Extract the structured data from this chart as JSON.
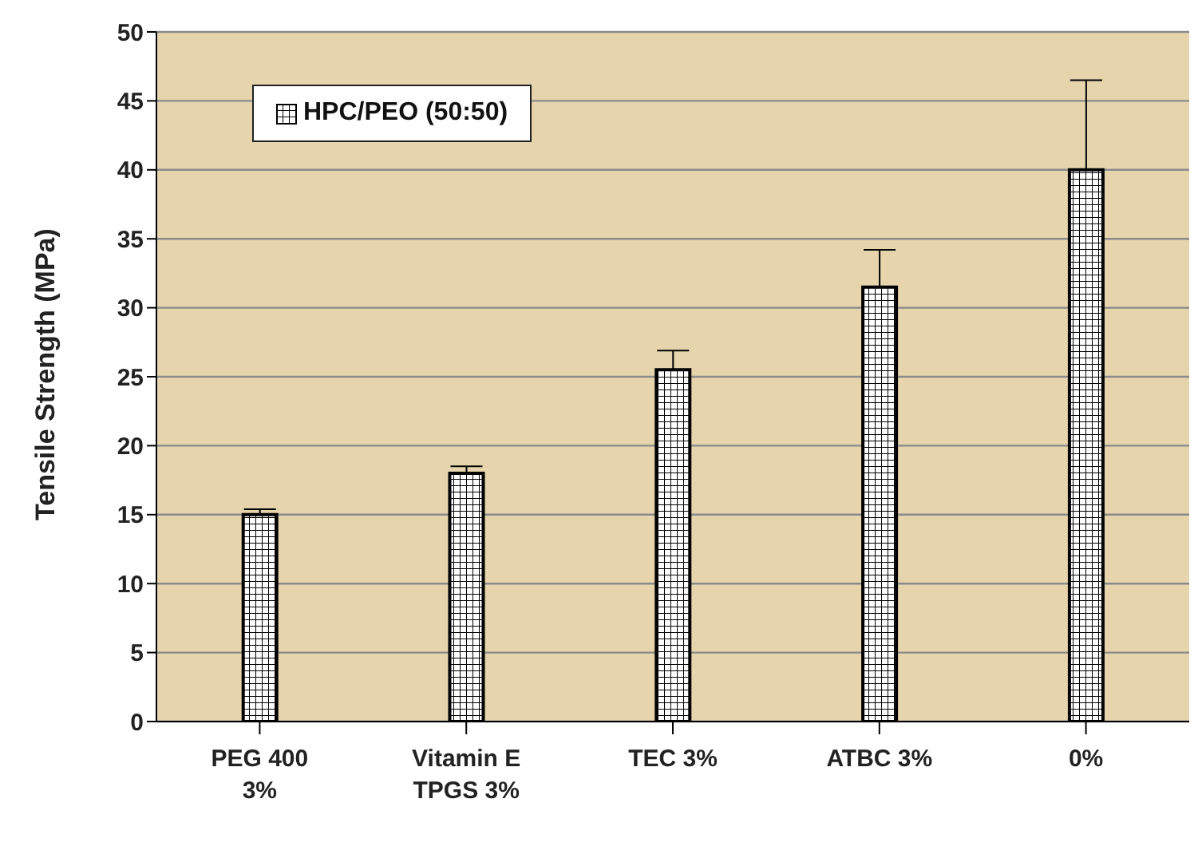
{
  "chart_data": {
    "type": "bar",
    "ylabel": "Tensile Strength (MPa)",
    "categories": [
      "PEG 400 3%",
      "Vitamin E TPGS 3%",
      "TEC 3%",
      "ATBC 3%",
      "0%"
    ],
    "series": [
      {
        "name": "HPC/PEO (50:50)",
        "color": "#000000",
        "values": [
          15,
          18,
          25.5,
          31.5,
          40
        ],
        "errors": [
          [
            15,
            15.4
          ],
          [
            18,
            18.5
          ],
          [
            25.5,
            26.9
          ],
          [
            31.5,
            34.2
          ],
          [
            40,
            46.5
          ]
        ]
      }
    ],
    "ylim": [
      0,
      50
    ],
    "yticks": [
      0,
      5,
      10,
      15,
      20,
      25,
      30,
      35,
      40,
      45,
      50
    ],
    "grid": "y",
    "legend": "top left"
  }
}
